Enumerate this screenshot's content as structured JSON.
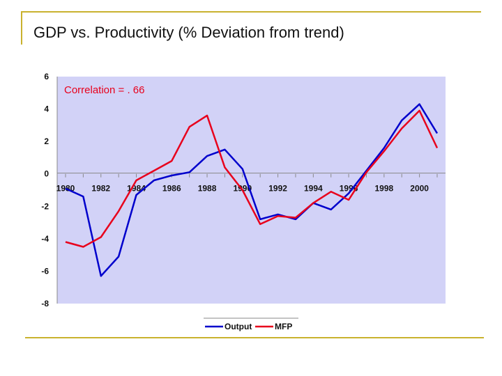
{
  "slide": {
    "title": "GDP vs. Productivity (% Deviation from trend)",
    "accent_color": "#c9b22e"
  },
  "chart_data": {
    "type": "line",
    "title": "",
    "annotation": "Correlation = . 66",
    "annotation_color": "#e8001c",
    "xlabel": "",
    "ylabel": "",
    "x": [
      1980,
      1981,
      1982,
      1983,
      1984,
      1985,
      1986,
      1987,
      1988,
      1989,
      1990,
      1991,
      1992,
      1993,
      1994,
      1995,
      1996,
      1997,
      1998,
      1999,
      2000,
      2001
    ],
    "x_tick_labels": [
      "1980",
      "1982",
      "1984",
      "1986",
      "1988",
      "1990",
      "1992",
      "1994",
      "1996",
      "1998",
      "2000"
    ],
    "y_tick_labels": [
      "6",
      "4",
      "2",
      "0",
      "-2",
      "-4",
      "-6",
      "-8"
    ],
    "ylim": [
      -8,
      6
    ],
    "y_ticks": [
      6,
      4,
      2,
      0,
      -2,
      -4,
      -6,
      -8
    ],
    "grid": false,
    "plot_background": "#d2d2f7",
    "legend_position": "bottom-center",
    "series": [
      {
        "name": "Output",
        "color": "#0000cc",
        "values": [
          -0.9,
          -1.4,
          -6.3,
          -5.1,
          -1.3,
          -0.4,
          -0.1,
          0.1,
          1.1,
          1.5,
          0.3,
          -2.8,
          -2.5,
          -2.8,
          -1.8,
          -2.2,
          -1.2,
          0.2,
          1.6,
          3.3,
          4.3,
          2.5
        ]
      },
      {
        "name": "MFP",
        "color": "#e8001c",
        "values": [
          -4.2,
          -4.5,
          -3.9,
          -2.3,
          -0.4,
          0.2,
          0.8,
          2.9,
          3.6,
          0.4,
          -1.0,
          -3.1,
          -2.6,
          -2.7,
          -1.8,
          -1.1,
          -1.6,
          0.1,
          1.4,
          2.8,
          3.9,
          1.6
        ]
      }
    ]
  }
}
